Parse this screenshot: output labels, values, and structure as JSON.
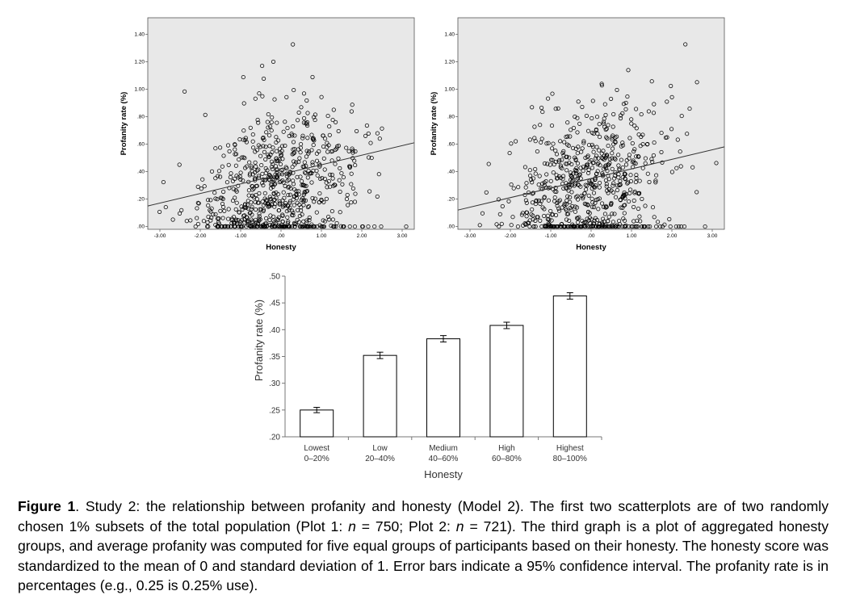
{
  "chart_data": [
    {
      "type": "scatter",
      "name": "plot-1",
      "xlabel": "Honesty",
      "ylabel": "Profanity rate (%)",
      "xlim": [
        -3.3,
        3.3
      ],
      "ylim": [
        -0.02,
        1.52
      ],
      "xticks": [
        "-3.00",
        "-2.00",
        "-1.00",
        ".00",
        "1.00",
        "2.00",
        "3.00"
      ],
      "xtick_values": [
        -3,
        -2,
        -1,
        0,
        1,
        2,
        3
      ],
      "yticks": [
        ".00",
        ".20",
        ".40",
        ".60",
        ".80",
        "1.00",
        "1.20",
        "1.40"
      ],
      "ytick_values": [
        0,
        0.2,
        0.4,
        0.6,
        0.8,
        1.0,
        1.2,
        1.4
      ],
      "n": 750,
      "fit_line": {
        "x": [
          -3.3,
          3.3
        ],
        "y": [
          0.15,
          0.61
        ]
      },
      "background": "#e8e8e8",
      "point_color": "#000000"
    },
    {
      "type": "scatter",
      "name": "plot-2",
      "xlabel": "Honesty",
      "ylabel": "Profanity rate (%)",
      "xlim": [
        -3.3,
        3.3
      ],
      "ylim": [
        -0.02,
        1.52
      ],
      "xticks": [
        "-3.00",
        "-2.00",
        "-1.00",
        ".00",
        "1.00",
        "2.00",
        "3.00"
      ],
      "xtick_values": [
        -3,
        -2,
        -1,
        0,
        1,
        2,
        3
      ],
      "yticks": [
        ".00",
        ".20",
        ".40",
        ".60",
        ".80",
        "1.00",
        "1.20",
        "1.40"
      ],
      "ytick_values": [
        0,
        0.2,
        0.4,
        0.6,
        0.8,
        1.0,
        1.2,
        1.4
      ],
      "n": 721,
      "fit_line": {
        "x": [
          -3.3,
          3.3
        ],
        "y": [
          0.12,
          0.58
        ]
      },
      "background": "#e8e8e8",
      "point_color": "#000000"
    },
    {
      "type": "bar",
      "name": "aggregated",
      "categories": [
        {
          "label": "Lowest",
          "sub": "0–20%"
        },
        {
          "label": "Low",
          "sub": "20–40%"
        },
        {
          "label": "Medium",
          "sub": "40–60%"
        },
        {
          "label": "High",
          "sub": "60–80%"
        },
        {
          "label": "Highest",
          "sub": "80–100%"
        }
      ],
      "values": [
        0.25,
        0.352,
        0.383,
        0.408,
        0.463
      ],
      "error": [
        0.005,
        0.006,
        0.006,
        0.006,
        0.006
      ],
      "ylim": [
        0.2,
        0.5
      ],
      "yticks": [
        ".20",
        ".25",
        ".30",
        ".35",
        ".40",
        ".45",
        ".50"
      ],
      "ytick_values": [
        0.2,
        0.25,
        0.3,
        0.35,
        0.4,
        0.45,
        0.5
      ],
      "xlabel": "Honesty",
      "ylabel": "Profanity rate (%)",
      "bar_fill": "#ffffff",
      "bar_stroke": "#000000"
    }
  ],
  "caption": {
    "label": "Figure 1",
    "p1": ". Study 2: the relationship between profanity and honesty (Model 2). The first two scatterplots are of two randomly chosen 1% subsets of the total population (Plot 1: ",
    "n_symbol_1": "n",
    "p2": " = 750; Plot 2: ",
    "n_symbol_2": "n",
    "p3": " = 721). The third graph is a plot of aggregated honesty groups, and average profanity was computed for five equal groups of participants based on their honesty. The honesty score was standardized to the mean of 0 and standard deviation of 1. Error bars indicate a 95% confidence interval. The profanity rate is in percentages (e.g., 0.25 is 0.25% use)."
  }
}
